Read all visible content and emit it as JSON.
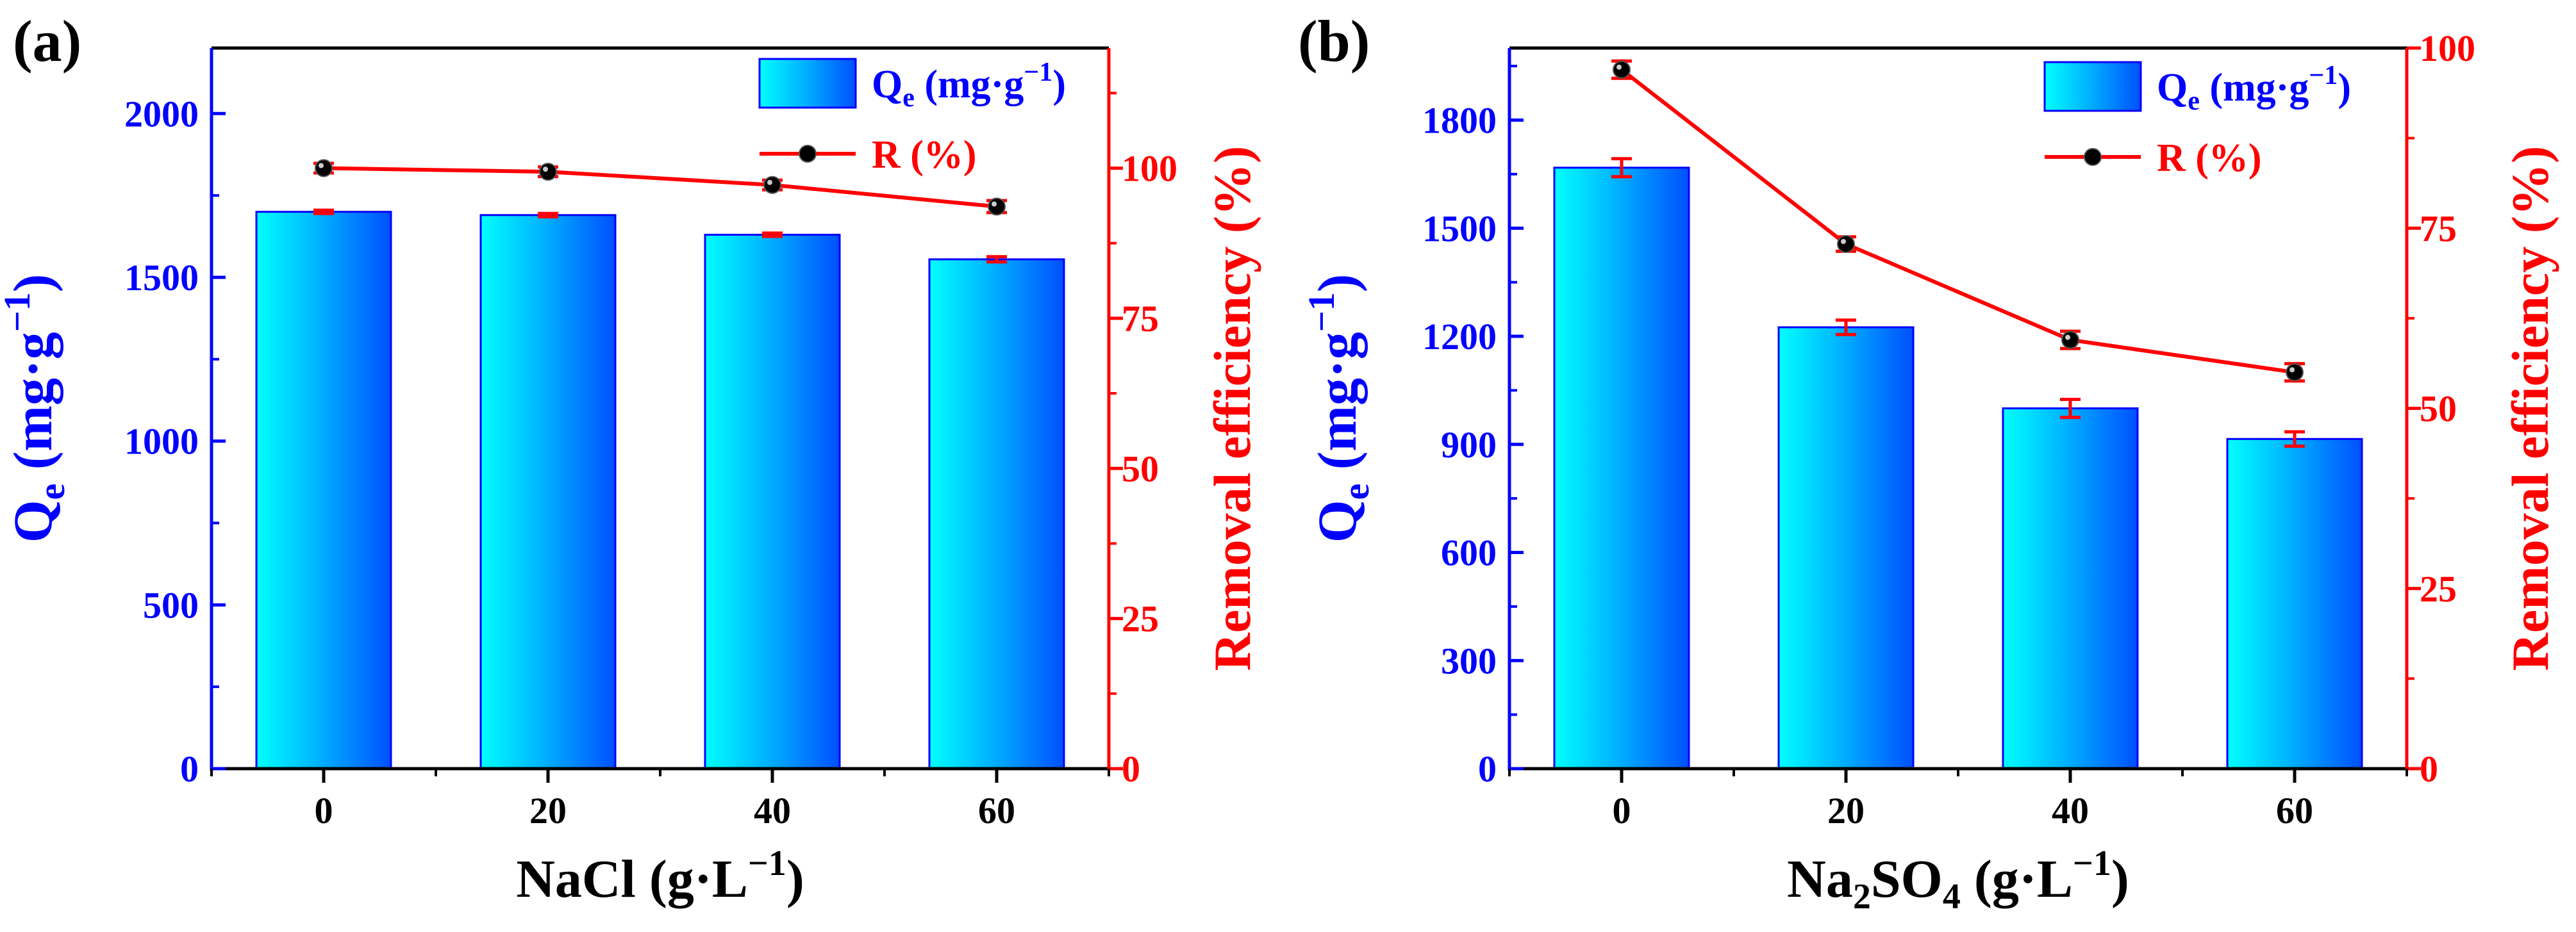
{
  "colors": {
    "left_axis": "#0000ff",
    "right_axis": "#ff0000",
    "bar_edge": "#0000ff",
    "bar_light": "#00ffff",
    "bar_mid": "#00b4ff",
    "bar_dark": "#0050ff",
    "line": "#ff0000",
    "marker": "#000000",
    "frame": "#000000",
    "error": "#ff0000"
  },
  "chart_data": [
    {
      "type": "bar",
      "panel_label": "(a)",
      "categories": [
        "0",
        "20",
        "40",
        "60"
      ],
      "xlabel": {
        "prefix": "NaCl (g·L",
        "sup": "−1",
        "suffix": ")"
      },
      "ylabel": {
        "main": "Q",
        "sub": "e",
        "mid": " (mg·g",
        "sup": "−1",
        "end": ")"
      },
      "ylabel_right": "Removal efficiency (%)",
      "ylim": [
        0,
        2200
      ],
      "yticks": [
        0,
        500,
        1000,
        1500,
        2000
      ],
      "yticks_minor": [
        250,
        750,
        1250,
        1750
      ],
      "ylim_right": [
        0,
        120
      ],
      "yticks_right": [
        0,
        25,
        50,
        75,
        100
      ],
      "yticks_right_minor": [
        12.5,
        37.5,
        62.5,
        87.5,
        112.5
      ],
      "series": [
        {
          "name": "Qe (mg·g−1)",
          "kind": "bar",
          "axis": "left",
          "values": [
            1700,
            1690,
            1630,
            1555
          ],
          "errors": [
            5,
            5,
            5,
            8
          ]
        },
        {
          "name": "R (%)",
          "kind": "line",
          "axis": "right",
          "values": [
            100.0,
            99.4,
            97.2,
            93.6
          ],
          "errors": [
            0.8,
            0.8,
            0.8,
            1.0
          ]
        }
      ],
      "legend": {
        "bar": {
          "main": "Q",
          "sub": "e",
          "text": " (mg·g",
          "sup": "−1",
          "end": ")"
        },
        "line": {
          "text": "R (%)"
        },
        "position": "top-right"
      }
    },
    {
      "type": "bar",
      "panel_label": "(b)",
      "categories": [
        "0",
        "20",
        "40",
        "60"
      ],
      "xlabel": {
        "prefix": "Na",
        "sub1": "2",
        "mid": "SO",
        "sub2": "4",
        "text": " (g·L",
        "sup": "−1",
        "suffix": ")"
      },
      "ylabel": {
        "main": "Q",
        "sub": "e",
        "mid": " (mg·g",
        "sup": "−1",
        "end": ")"
      },
      "ylabel_right": "Removal efficiency (%)",
      "ylim": [
        0,
        2000
      ],
      "yticks": [
        0,
        300,
        600,
        900,
        1200,
        1500,
        1800
      ],
      "yticks_minor": [
        150,
        450,
        750,
        1050,
        1350,
        1650,
        1950
      ],
      "ylim_right": [
        0,
        100
      ],
      "yticks_right": [
        0,
        25,
        50,
        75,
        100
      ],
      "yticks_right_minor": [
        12.5,
        37.5,
        62.5,
        87.5
      ],
      "series": [
        {
          "name": "Qe (mg·g−1)",
          "kind": "bar",
          "axis": "left",
          "values": [
            1668,
            1225,
            1000,
            915
          ],
          "errors": [
            25,
            20,
            25,
            20
          ]
        },
        {
          "name": "R (%)",
          "kind": "line",
          "axis": "right",
          "values": [
            97.0,
            72.8,
            59.5,
            55.0
          ],
          "errors": [
            1.2,
            1.0,
            1.2,
            1.2
          ]
        }
      ],
      "legend": {
        "bar": {
          "main": "Q",
          "sub": "e",
          "text": " (mg·g",
          "sup": "−1",
          "end": ")"
        },
        "line": {
          "text": "R (%)"
        },
        "position": "top-right"
      }
    }
  ]
}
